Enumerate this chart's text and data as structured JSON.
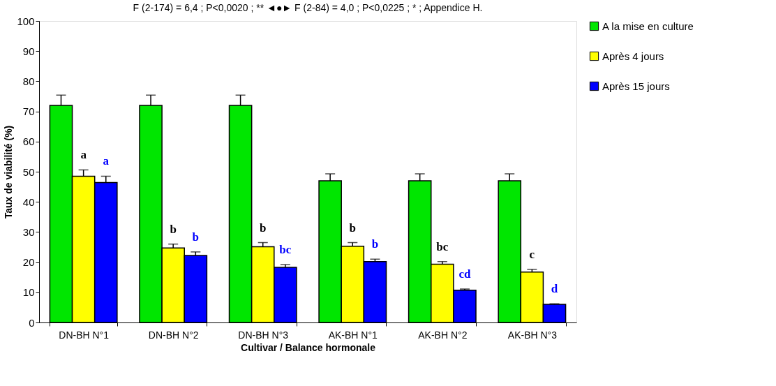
{
  "chart_data": {
    "type": "bar",
    "title": "F (2-174) = 6,4 ; P<0,0020 ; ** ◄●► F (2-84) = 4,0 ; P<0,0225 ; * ; Appendice H.",
    "xlabel": "Cultivar / Balance hormonale",
    "ylabel": "Taux de viabilité (%)",
    "categories": [
      "DN-BH N°1",
      "DN-BH N°2",
      "DN-BH N°3",
      "AK-BH N°1",
      "AK-BH N°2",
      "AK-BH N°3"
    ],
    "series": [
      {
        "name": "A la mise en culture",
        "color": "#00e600",
        "values": [
          72,
          72,
          72,
          47,
          47,
          47
        ],
        "errors": [
          [
            72,
            75.4
          ],
          [
            72,
            75.4
          ],
          [
            72,
            75.4
          ],
          [
            47,
            49.3
          ],
          [
            47,
            49.3
          ],
          [
            47,
            49.3
          ]
        ]
      },
      {
        "name": "Après 4 jours",
        "color": "#ffff00",
        "values": [
          48.5,
          24.7,
          25.1,
          25.3,
          19.3,
          16.7
        ],
        "errors": [
          [
            48.5,
            50.6
          ],
          [
            24.7,
            26
          ],
          [
            25.1,
            26.5
          ],
          [
            25.3,
            26.5
          ],
          [
            19.3,
            20.2
          ],
          [
            16.7,
            17.6
          ]
        ],
        "value_labels": [
          "a",
          "b",
          "b",
          "b",
          "bc",
          "c"
        ]
      },
      {
        "name": "Après 15 jours",
        "color": "#0000ff",
        "values": [
          46.4,
          22.2,
          18.3,
          20.2,
          10.7,
          6.0
        ],
        "errors": [
          [
            46.4,
            48.5
          ],
          [
            22.2,
            23.4
          ],
          [
            18.3,
            19.2
          ],
          [
            20.2,
            21
          ],
          [
            10.7,
            11.1
          ],
          [
            6.0,
            6.2
          ]
        ],
        "value_labels": [
          "a",
          "b",
          "bc",
          "b",
          "cd",
          "d"
        ]
      }
    ],
    "ylim": [
      0,
      100
    ],
    "yticks": [
      0,
      10,
      20,
      30,
      40,
      50,
      60,
      70,
      80,
      90,
      100
    ],
    "grid": false,
    "legend": "right"
  }
}
